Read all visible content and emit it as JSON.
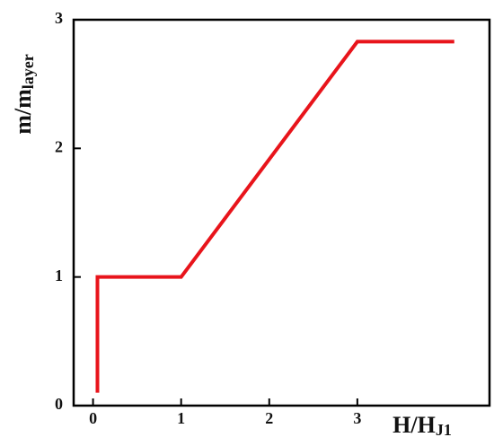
{
  "chart_data": {
    "type": "line",
    "x_label": {
      "text": "H/H",
      "sub": "J1"
    },
    "y_label": {
      "text": "m/m",
      "sub": "layer"
    },
    "series": [
      {
        "color": "#e8141b",
        "x": [
          0.05,
          0.05,
          1.0,
          3.0,
          4.1
        ],
        "values": [
          0.1,
          1,
          1,
          2.83,
          2.83
        ]
      }
    ],
    "xlim": [
      -0.22,
      4.5
    ],
    "ylim": [
      0,
      3
    ],
    "xticks": [
      0,
      1,
      2,
      3
    ],
    "yticks": [
      0,
      1,
      2,
      3
    ],
    "grid": false
  }
}
